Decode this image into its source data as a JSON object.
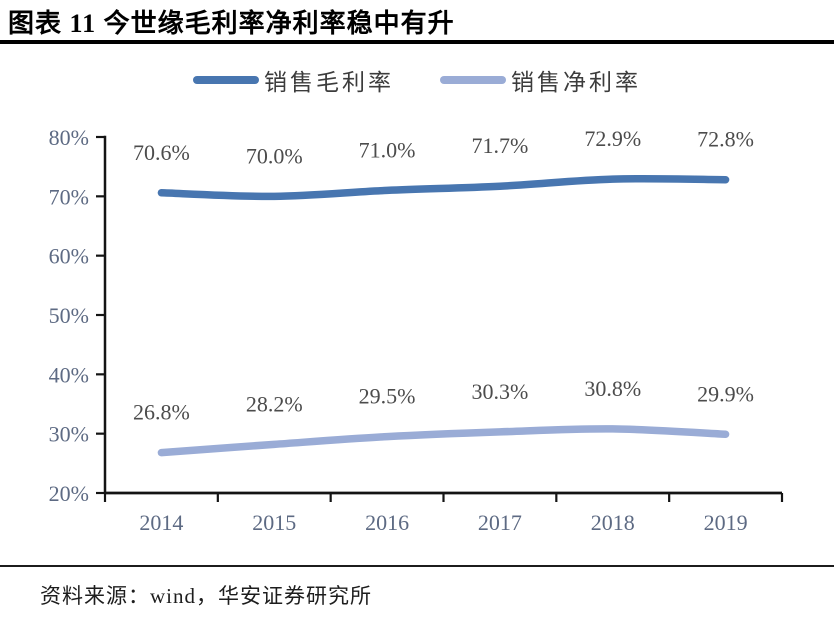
{
  "title": "图表 11 今世缘毛利率净利率稳中有升",
  "source": "资料来源：wind，华安证券研究所",
  "colors": {
    "gross_line": "#4876B0",
    "net_line": "#9AACD6",
    "axis": "#141414",
    "axis_label": "#5d6a83",
    "data_label": "#4c4c4c"
  },
  "chart_data": {
    "type": "line",
    "title": "今世缘毛利率净利率稳中有升",
    "categories": [
      "2014",
      "2015",
      "2016",
      "2017",
      "2018",
      "2019"
    ],
    "series": [
      {
        "name": "销售毛利率",
        "color": "#4876B0",
        "values": [
          70.6,
          70.0,
          71.0,
          71.7,
          72.9,
          72.8
        ],
        "labels": [
          "70.6%",
          "70.0%",
          "71.0%",
          "71.7%",
          "72.9%",
          "72.8%"
        ]
      },
      {
        "name": "销售净利率",
        "color": "#9AACD6",
        "values": [
          26.8,
          28.2,
          29.5,
          30.3,
          30.8,
          29.9
        ],
        "labels": [
          "26.8%",
          "28.2%",
          "29.5%",
          "30.3%",
          "30.8%",
          "29.9%"
        ]
      }
    ],
    "ylim": [
      20,
      80
    ],
    "ytick_step": 10,
    "ytick_labels": [
      "20%",
      "30%",
      "40%",
      "50%",
      "60%",
      "70%",
      "80%"
    ],
    "grid": false,
    "legend_position": "top",
    "line_style": "smooth"
  }
}
